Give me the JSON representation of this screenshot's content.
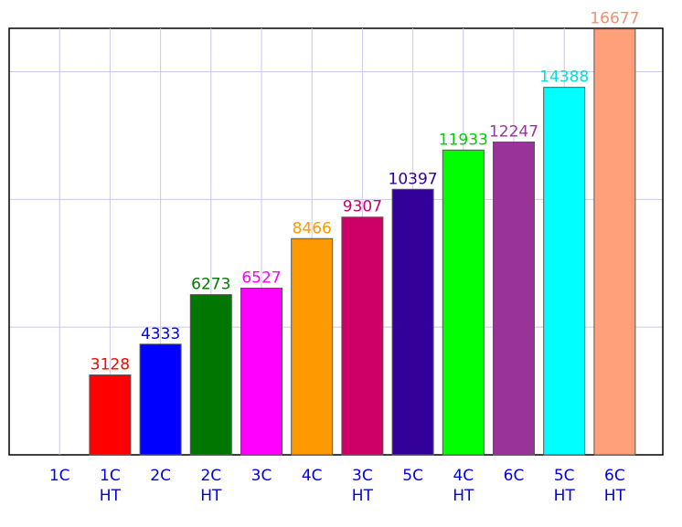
{
  "chart_data": {
    "type": "bar",
    "categories": [
      "1C",
      "1C\nHT",
      "2C",
      "2C\nHT",
      "3C",
      "4C",
      "3C\nHT",
      "5C",
      "4C\nHT",
      "6C",
      "5C\nHT",
      "6C\nHT"
    ],
    "values": [
      null,
      3128,
      4333,
      6273,
      6527,
      8466,
      9307,
      10397,
      11933,
      12247,
      14388,
      16677
    ],
    "colors": [
      "#ff0000",
      "#ff0000",
      "#0000ff",
      "#007700",
      "#ff00ff",
      "#ff9900",
      "#cc0066",
      "#330099",
      "#00ff00",
      "#993399",
      "#00ffff",
      "#ffa07a"
    ],
    "label_colors": [
      "#ff0000",
      "#ff0000",
      "#0000ff",
      "#007700",
      "#ff00ff",
      "#ff9900",
      "#cc0066",
      "#330099",
      "#00cc00",
      "#993399",
      "#00dddd",
      "#f09070"
    ],
    "ylim": [
      0,
      16700
    ],
    "yticks": [
      0,
      5000,
      10000,
      15000
    ],
    "grid": true
  }
}
